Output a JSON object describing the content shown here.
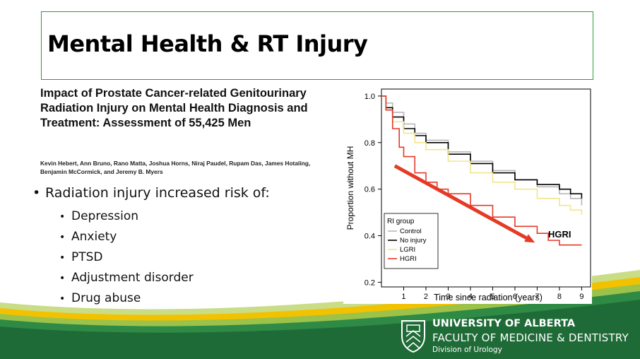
{
  "slide": {
    "title": "Mental Health & RT Injury",
    "paper_title": "Impact of Prostate Cancer-related Genitourinary Radiation Injury on Mental Health Diagnosis and Treatment: Assessment of 55,425 Men",
    "authors": "Kevin Hebert, Ann Bruno, Rano Matta, Joshua Horns, Niraj Paudel, Rupam Das, James Hotaling, Benjamin McCormick, and Jeremy B. Myers",
    "main_bullet": "Radiation injury increased risk of:",
    "sub_bullets": [
      "Depression",
      "Anxiety",
      "PTSD",
      "Adjustment disorder",
      "Drug abuse"
    ],
    "colors": {
      "title_border": "#2e9a3a",
      "footer_green": "#1f6b37",
      "accent_gold": "#f2c200",
      "arrow_red": "#e43a26"
    }
  },
  "branding": {
    "line1": "UNIVERSITY OF ALBERTA",
    "line2": "FACULTY OF MEDICINE & DENTISTRY",
    "line3": "Division of Urology",
    "logo_icon": "ua-shield-icon"
  },
  "chart_data": {
    "type": "line",
    "title": "",
    "xlabel": "Time since radiation (years)",
    "ylabel": "Proportion without MH",
    "xlim": [
      0,
      9.4
    ],
    "ylim": [
      0.18,
      1.03
    ],
    "xticks": [
      1,
      2,
      3,
      4,
      5,
      6,
      7,
      8,
      9
    ],
    "yticks": [
      0.2,
      0.4,
      0.6,
      0.8,
      1.0
    ],
    "ytick_labels": [
      "0.2",
      "0.4",
      "0.6",
      "0.8",
      "1.0"
    ],
    "grid": false,
    "legend": {
      "title": "RI group",
      "placement": "bottom-left"
    },
    "annotation": {
      "text": "HGRI",
      "arrow_from": [
        0.6,
        0.7
      ],
      "arrow_to": [
        6.9,
        0.37
      ]
    },
    "series": [
      {
        "name": "Control",
        "color": "#b8b8b8",
        "x": [
          0,
          0.2,
          0.5,
          1,
          1.5,
          2,
          3,
          4,
          5,
          6,
          7,
          8,
          8.5,
          9
        ],
        "y": [
          1.0,
          0.97,
          0.93,
          0.88,
          0.84,
          0.81,
          0.76,
          0.72,
          0.68,
          0.64,
          0.61,
          0.58,
          0.56,
          0.53
        ]
      },
      {
        "name": "No injury",
        "color": "#000000",
        "x": [
          0,
          0.2,
          0.5,
          1,
          1.5,
          2,
          3,
          4,
          5,
          6,
          7,
          8,
          8.5,
          9
        ],
        "y": [
          1.0,
          0.95,
          0.91,
          0.86,
          0.83,
          0.8,
          0.75,
          0.71,
          0.67,
          0.64,
          0.62,
          0.6,
          0.58,
          0.56
        ]
      },
      {
        "name": "LGRI",
        "color": "#f2e58a",
        "x": [
          0,
          0.2,
          0.5,
          1,
          1.5,
          2,
          3,
          4,
          5,
          6,
          7,
          8,
          8.5,
          9
        ],
        "y": [
          1.0,
          0.94,
          0.89,
          0.84,
          0.8,
          0.77,
          0.72,
          0.67,
          0.63,
          0.6,
          0.56,
          0.53,
          0.51,
          0.49
        ]
      },
      {
        "name": "HGRI",
        "color": "#e43a26",
        "x": [
          0,
          0.2,
          0.5,
          0.8,
          1,
          1.5,
          2,
          2.5,
          3,
          4,
          5,
          6,
          7,
          7.5,
          8,
          8.5,
          9
        ],
        "y": [
          1.0,
          0.94,
          0.86,
          0.78,
          0.74,
          0.67,
          0.63,
          0.6,
          0.58,
          0.53,
          0.48,
          0.44,
          0.41,
          0.38,
          0.36,
          0.36,
          0.36
        ]
      }
    ]
  }
}
